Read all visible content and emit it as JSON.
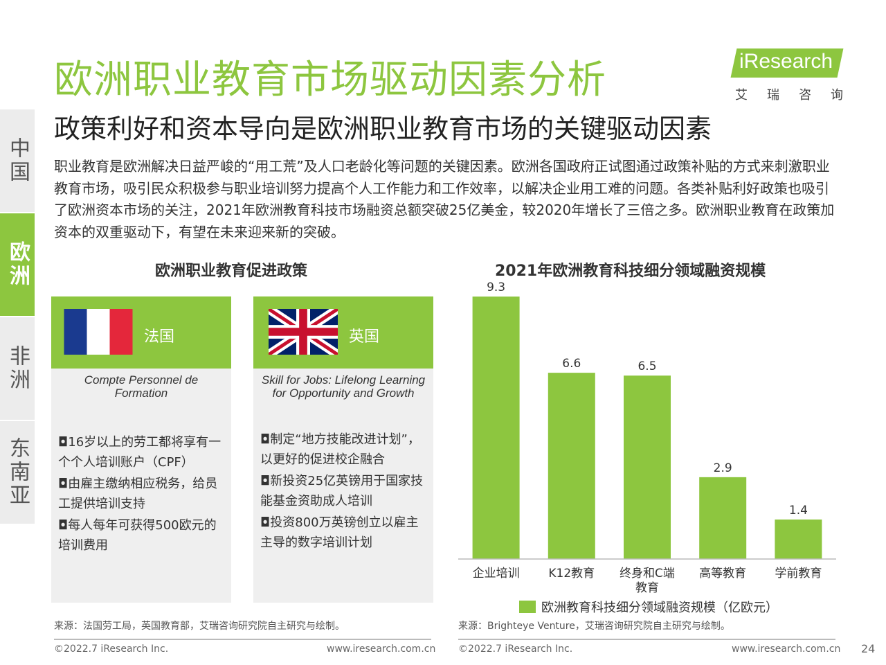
{
  "header": {
    "title": "欧洲职业教育市场驱动因素分析",
    "subtitle": "政策利好和资本导向是欧洲职业教育市场的关键驱动因素"
  },
  "logo": {
    "text": "iResearch",
    "cn": [
      "艾",
      "瑞",
      "咨",
      "询"
    ]
  },
  "sidebar": {
    "items": [
      {
        "label": "中国",
        "active": false
      },
      {
        "label": "欧洲",
        "active": true
      },
      {
        "label": "非洲",
        "active": false
      },
      {
        "label": "东南亚",
        "active": false
      }
    ]
  },
  "intro": "职业教育是欧洲解决日益严峻的“用工荒”及人口老龄化等问题的关键因素。欧洲各国政府正试图通过政策补贴的方式来刺激职业教育市场，吸引民众积极参与职业培训努力提高个人工作能力和工作效率，以解决企业用工难的问题。各类补贴利好政策也吸引了欧洲资本市场的关注，2021年欧洲教育科技市场融资总额突破25亿美金，较2020年增长了三倍之多。欧洲职业教育在政策加资本的双重驱动下，有望在未来迎来新的突破。",
  "policy": {
    "heading": "欧洲职业教育促进政策",
    "cards": [
      {
        "country": "法国",
        "flag": "france-flag-icon",
        "program": "Compte Personnel de Formation",
        "items": [
          "◘16岁以上的劳工都将享有一个个人培训账户（CPF）",
          "◘由雇主缴纳相应税务，给员工提供培训支持",
          "◘每人每年可获得500欧元的培训费用"
        ]
      },
      {
        "country": "英国",
        "flag": "uk-flag-icon",
        "program": "Skill for Jobs: Lifelong Learning for Opportunity and Growth",
        "items": [
          "◘制定“地方技能改进计划”，以更好的促进校企融合",
          "◘新投资25亿英镑用于国家技能基金资助成人培训",
          "◘投资800万英镑创立以雇主主导的数字培训计划"
        ]
      }
    ]
  },
  "chart_data": {
    "type": "bar",
    "title": "2021年欧洲教育科技细分领域融资规模",
    "categories": [
      "企业培训",
      "K12教育",
      "终身和C端教育",
      "高等教育",
      "学前教育"
    ],
    "category_lines": [
      [
        "企业培训"
      ],
      [
        "K12教育"
      ],
      [
        "终身和C端",
        "教育"
      ],
      [
        "高等教育"
      ],
      [
        "学前教育"
      ]
    ],
    "series": [
      {
        "name": "欧洲教育科技细分领域融资规模（亿欧元）",
        "values": [
          9.3,
          6.6,
          6.5,
          2.9,
          1.4
        ]
      }
    ],
    "ylim": [
      0,
      9.5
    ],
    "grid": false,
    "legend": "bottom",
    "color": "#8dc63f"
  },
  "footer": {
    "source_left": "来源：法国劳工局，英国教育部，艾瑞咨询研究院自主研究与绘制。",
    "source_right": "来源：Brighteye Venture，艾瑞咨询研究院自主研究与绘制。",
    "copyright_left": "©2022.7 iResearch Inc.",
    "site_left": "www.iresearch.com.cn",
    "copyright_right": "©2022.7 iResearch Inc.",
    "site_right": "www.iresearch.com.cn",
    "page": "24"
  }
}
